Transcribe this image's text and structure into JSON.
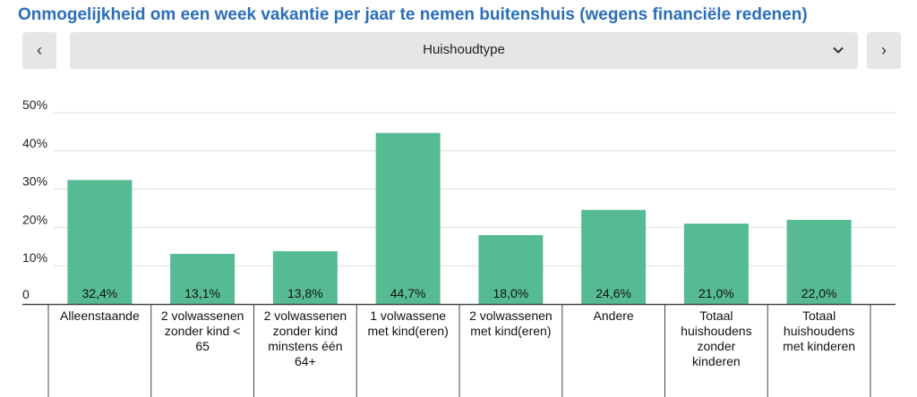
{
  "title": "Onmogelijkheid om een week vakantie per jaar te nemen buitenshuis (wegens financiële redenen)",
  "nav": {
    "prev_icon": "chevron-left-icon",
    "next_icon": "chevron-right-icon",
    "prev_glyph": "‹",
    "next_glyph": "›"
  },
  "dropdown": {
    "selected": "Huishoudtype",
    "icon": "chevron-down-icon"
  },
  "colors": {
    "bar": "#56bb93",
    "grid": "#dddddd",
    "axis": "#444444",
    "title": "#2a6ebb"
  },
  "chart_data": {
    "type": "bar",
    "categories": [
      "Alleenstaande",
      "2 volwassenen zonder kind < 65",
      "2 volwassenen zonder kind minstens één 64+",
      "1 volwassene met kind(eren)",
      "2 volwassenen met kind(eren)",
      "Andere",
      "Totaal huishoudens zonder kinderen",
      "Totaal huishoudens met kinderen"
    ],
    "category_lines": [
      [
        "Alleenstaande"
      ],
      [
        "2 volwassenen",
        "zonder kind <",
        "65"
      ],
      [
        "2 volwassenen",
        "zonder kind",
        "minstens één",
        "64+"
      ],
      [
        "1 volwassene",
        "met kind(eren)"
      ],
      [
        "2 volwassenen",
        "met kind(eren)"
      ],
      [
        "Andere"
      ],
      [
        "Totaal",
        "huishoudens",
        "zonder",
        "kinderen"
      ],
      [
        "Totaal",
        "huishoudens",
        "met kinderen"
      ]
    ],
    "values": [
      32.4,
      13.1,
      13.8,
      44.7,
      18.0,
      24.6,
      21.0,
      22.0
    ],
    "value_labels": [
      "32,4%",
      "13,1%",
      "13,8%",
      "44,7%",
      "18,0%",
      "24,6%",
      "21,0%",
      "22,0%"
    ],
    "yticks": [
      0,
      10,
      20,
      30,
      40,
      50
    ],
    "ytick_labels": [
      "0",
      "10%",
      "20%",
      "30%",
      "40%",
      "50%"
    ],
    "ylim": [
      0,
      50
    ],
    "grid": true,
    "legend": "none"
  }
}
